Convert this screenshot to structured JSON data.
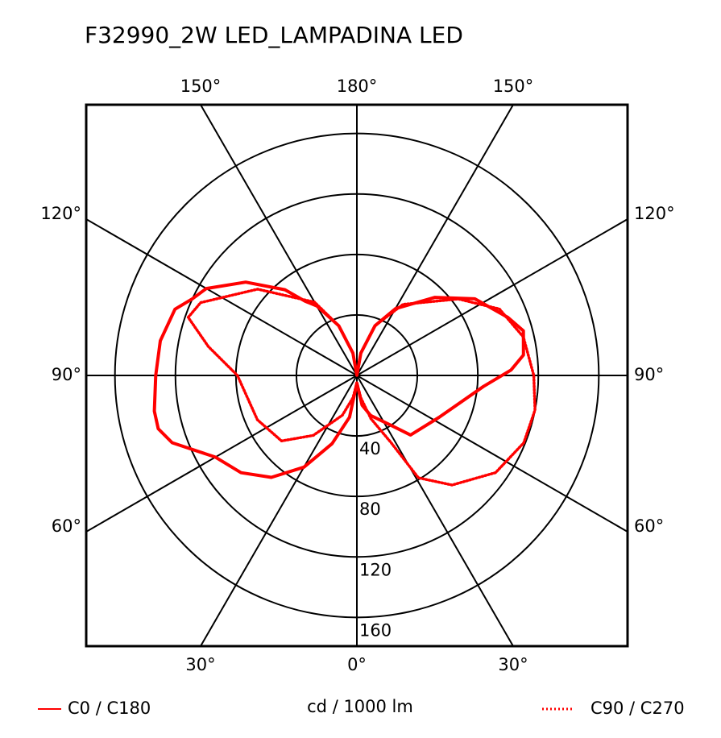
{
  "chart_data": {
    "type": "polar",
    "title": "F32990_2W LED_LAMPADINA LED",
    "radial_axis_label": "cd / 1000 lm",
    "rlim": [
      0,
      179
    ],
    "rticks": [
      40,
      80,
      120,
      160
    ],
    "angle_ticks": [
      {
        "value": 0,
        "label": "0°"
      },
      {
        "value": 30,
        "label": "30°"
      },
      {
        "value": 60,
        "label": "60°"
      },
      {
        "value": 90,
        "label": "90°"
      },
      {
        "value": 120,
        "label": "120°"
      },
      {
        "value": 150,
        "label": "150°"
      },
      {
        "value": 180,
        "label": "180°"
      }
    ],
    "series": [
      {
        "name": "C0 / C180",
        "color": "#ff0000",
        "dash": false,
        "x": [
          -180,
          -170,
          -160,
          -150,
          -145,
          -140,
          -130,
          -120,
          -115,
          -110,
          -100,
          -90,
          -80,
          -75,
          -70,
          -60,
          -50,
          -40,
          -30,
          -20,
          -10,
          0,
          10,
          19,
          36,
          42,
          63,
          85,
          92,
          97,
          105,
          111,
          123,
          135,
          150,
          160,
          170,
          180
        ],
        "values": [
          0,
          15,
          35,
          53,
          60,
          74,
          96,
          115,
          120,
          128,
          132,
          133,
          136,
          136,
          130,
          108,
          100,
          88,
          70,
          48,
          28,
          5,
          20,
          28,
          42,
          53,
          61,
          84,
          102,
          111,
          114,
          107,
          93,
          73,
          51,
          35,
          15,
          0
        ]
      },
      {
        "name": "C90 / C270",
        "color": "#ff0000",
        "dash": true,
        "x": [
          -180,
          -170,
          -160,
          -150,
          -131,
          -115,
          -109,
          -101,
          -90,
          -66,
          -49,
          -36,
          -20,
          -10,
          0,
          10,
          18,
          27,
          31,
          41,
          55,
          68,
          79,
          90,
          103,
          115,
          127,
          147,
          160,
          170,
          180
        ],
        "values": [
          0,
          15,
          35,
          56,
          87,
          114,
          118,
          100,
          79,
          72,
          66,
          49,
          28,
          15,
          5,
          15,
          30,
          50,
          79,
          96,
          112,
          119,
          120,
          117,
          113,
          104,
          84,
          56,
          35,
          15,
          0
        ]
      }
    ]
  }
}
